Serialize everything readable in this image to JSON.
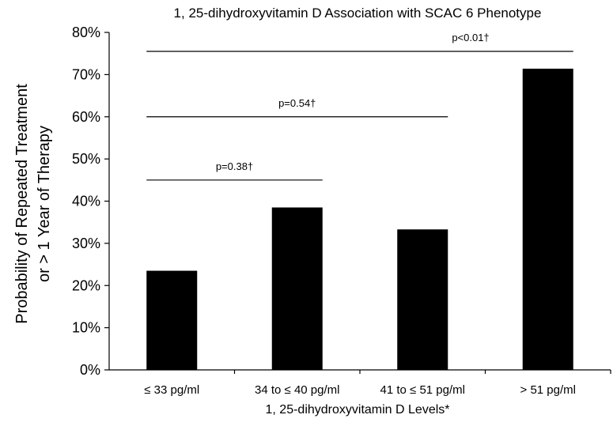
{
  "chart_data": {
    "type": "bar",
    "title": "1, 25-dihydroxyvitamin D Association with SCAC 6 Phenotype",
    "xlabel": "1, 25-dihydroxyvitamin D Levels*",
    "ylabel_lines": [
      "Probability of Repeated Treatment",
      "or > 1 Year of Therapy"
    ],
    "categories": [
      "≤ 33 pg/ml",
      "34 to ≤ 40 pg/ml",
      "41 to ≤ 51 pg/ml",
      "> 51 pg/ml"
    ],
    "values": [
      23.5,
      38.5,
      33.3,
      71.4
    ],
    "ylim": [
      0,
      80
    ],
    "yticks": [
      0,
      10,
      20,
      30,
      40,
      50,
      60,
      70,
      80
    ],
    "ytick_labels": [
      "0%",
      "10%",
      "20%",
      "30%",
      "40%",
      "50%",
      "60%",
      "70%",
      "80%"
    ],
    "grid": false,
    "bar_color": "#000000",
    "annotations": [
      {
        "label": "p=0.38†",
        "from": 0,
        "to": 1,
        "y": 45
      },
      {
        "label": "p=0.54†",
        "from": 0,
        "to": 2,
        "y": 60
      },
      {
        "label": "p<0.01†",
        "from": 0,
        "to": 3,
        "y": 75.5
      }
    ]
  }
}
